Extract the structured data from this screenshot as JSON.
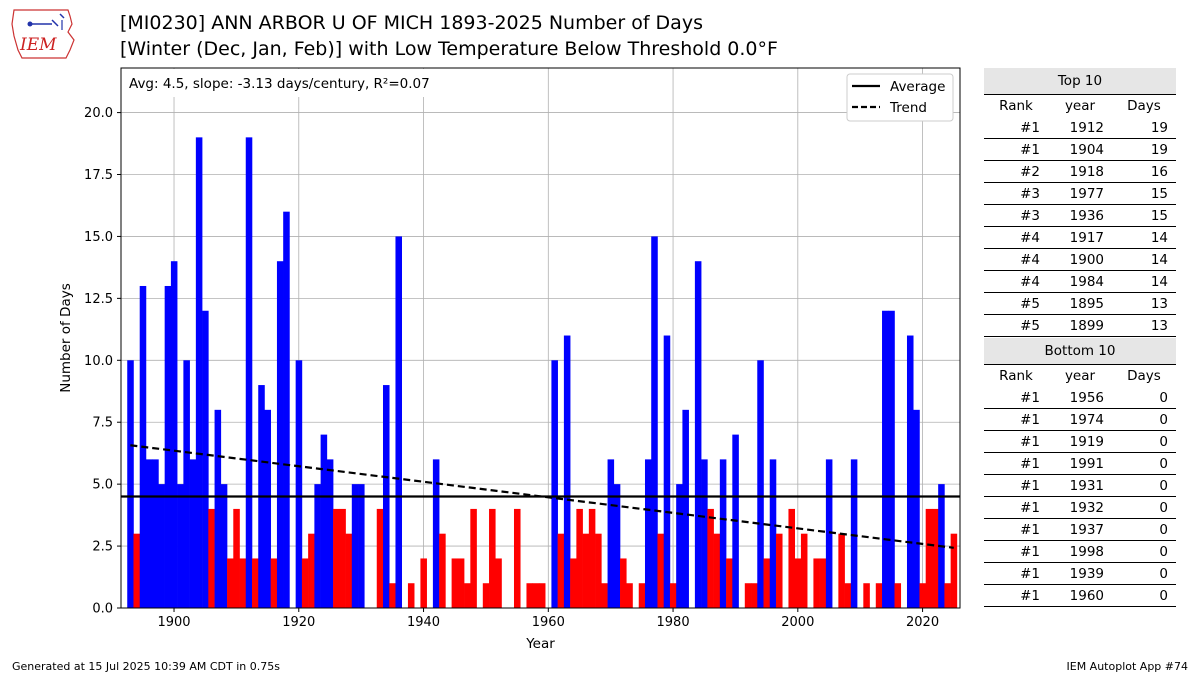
{
  "header": {
    "logo_text": "IEM",
    "title_line1": "[MI0230] ANN ARBOR U OF MICH 1893-2025 Number of Days",
    "title_line2": "[Winter (Dec, Jan, Feb)] with Low Temperature Below Threshold 0.0°F"
  },
  "chart_data": {
    "type": "bar",
    "xlabel": "Year",
    "ylabel": "Number of Days",
    "xlim": [
      1891.5,
      2026
    ],
    "ylim": [
      0,
      21.8
    ],
    "xticks": [
      1900,
      1920,
      1940,
      1960,
      1980,
      2000,
      2020
    ],
    "yticks": [
      0.0,
      2.5,
      5.0,
      7.5,
      10.0,
      12.5,
      15.0,
      17.5,
      20.0
    ],
    "grid": true,
    "colors": {
      "above": "#0000ff",
      "below": "#ff0000",
      "average": "#000000",
      "trend": "#000000"
    },
    "annotation": "Avg: 4.5, slope: -3.13 days/century, R²=0.07",
    "legend": {
      "position": "top-right",
      "entries": [
        {
          "label": "Average",
          "style": "solid"
        },
        {
          "label": "Trend",
          "style": "dashed"
        }
      ]
    },
    "average": 4.5,
    "trend": {
      "x": [
        1893,
        2025
      ],
      "y": [
        6.57,
        2.43
      ]
    },
    "years": [
      1893,
      1894,
      1895,
      1896,
      1897,
      1898,
      1899,
      1900,
      1901,
      1902,
      1903,
      1904,
      1905,
      1906,
      1907,
      1908,
      1909,
      1910,
      1911,
      1912,
      1913,
      1914,
      1915,
      1916,
      1917,
      1918,
      1919,
      1920,
      1921,
      1922,
      1923,
      1924,
      1925,
      1926,
      1927,
      1928,
      1929,
      1930,
      1931,
      1932,
      1933,
      1934,
      1935,
      1936,
      1937,
      1938,
      1939,
      1940,
      1941,
      1942,
      1943,
      1944,
      1945,
      1946,
      1947,
      1948,
      1949,
      1950,
      1951,
      1952,
      1953,
      1954,
      1955,
      1956,
      1957,
      1958,
      1959,
      1960,
      1961,
      1962,
      1963,
      1964,
      1965,
      1966,
      1967,
      1968,
      1969,
      1970,
      1971,
      1972,
      1973,
      1974,
      1975,
      1976,
      1977,
      1978,
      1979,
      1980,
      1981,
      1982,
      1983,
      1984,
      1985,
      1986,
      1987,
      1988,
      1989,
      1990,
      1991,
      1992,
      1993,
      1994,
      1995,
      1996,
      1997,
      1998,
      1999,
      2000,
      2001,
      2002,
      2003,
      2004,
      2005,
      2006,
      2007,
      2008,
      2009,
      2010,
      2011,
      2012,
      2013,
      2014,
      2015,
      2016,
      2017,
      2018,
      2019,
      2020,
      2021,
      2022,
      2023,
      2024,
      2025
    ],
    "values": [
      10,
      3,
      13,
      6,
      6,
      5,
      13,
      14,
      5,
      10,
      6,
      19,
      12,
      4,
      8,
      5,
      2,
      4,
      2,
      19,
      2,
      9,
      8,
      2,
      14,
      16,
      0,
      10,
      2,
      3,
      5,
      7,
      6,
      4,
      4,
      3,
      5,
      5,
      0,
      0,
      4,
      9,
      1,
      15,
      0,
      1,
      0,
      2,
      0,
      6,
      3,
      0,
      2,
      2,
      1,
      4,
      0,
      1,
      4,
      2,
      0,
      0,
      4,
      0,
      1,
      1,
      1,
      0,
      10,
      3,
      11,
      2,
      4,
      3,
      4,
      3,
      1,
      6,
      5,
      2,
      1,
      0,
      1,
      6,
      15,
      3,
      11,
      1,
      5,
      8,
      0,
      14,
      6,
      4,
      3,
      6,
      2,
      7,
      0,
      1,
      1,
      10,
      2,
      6,
      3,
      0,
      4,
      2,
      3,
      0,
      2,
      2,
      6,
      0,
      3,
      1,
      6,
      0,
      1,
      0,
      1,
      12,
      12,
      1,
      0,
      11,
      8,
      1,
      4,
      4,
      5,
      1,
      3
    ]
  },
  "top10": {
    "title": "Top 10",
    "headers": [
      "Rank",
      "year",
      "Days"
    ],
    "rows": [
      [
        "#1",
        "1912",
        "19"
      ],
      [
        "#1",
        "1904",
        "19"
      ],
      [
        "#2",
        "1918",
        "16"
      ],
      [
        "#3",
        "1977",
        "15"
      ],
      [
        "#3",
        "1936",
        "15"
      ],
      [
        "#4",
        "1917",
        "14"
      ],
      [
        "#4",
        "1900",
        "14"
      ],
      [
        "#4",
        "1984",
        "14"
      ],
      [
        "#5",
        "1895",
        "13"
      ],
      [
        "#5",
        "1899",
        "13"
      ]
    ]
  },
  "bottom10": {
    "title": "Bottom 10",
    "headers": [
      "Rank",
      "year",
      "Days"
    ],
    "rows": [
      [
        "#1",
        "1956",
        "0"
      ],
      [
        "#1",
        "1974",
        "0"
      ],
      [
        "#1",
        "1919",
        "0"
      ],
      [
        "#1",
        "1991",
        "0"
      ],
      [
        "#1",
        "1931",
        "0"
      ],
      [
        "#1",
        "1932",
        "0"
      ],
      [
        "#1",
        "1937",
        "0"
      ],
      [
        "#1",
        "1998",
        "0"
      ],
      [
        "#1",
        "1939",
        "0"
      ],
      [
        "#1",
        "1960",
        "0"
      ]
    ]
  },
  "footer": {
    "left": "Generated at 15 Jul 2025 10:39 AM CDT in 0.75s",
    "right": "IEM Autoplot App #74"
  }
}
